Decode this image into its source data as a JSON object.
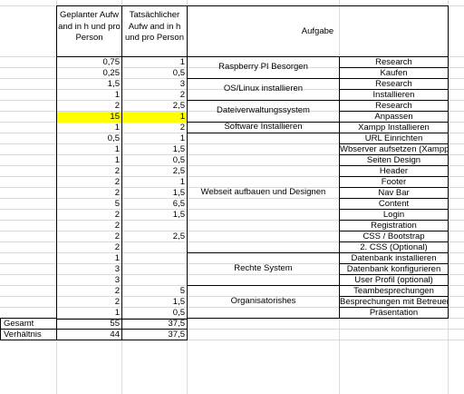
{
  "header": {
    "planned": "Geplanter Aufw and in h und pro Person",
    "actual": "Tatsächlicher Aufw and in h und pro Person",
    "task": "Aufgabe"
  },
  "colors": {
    "highlight": "#ffff00",
    "gridline": "#dadada"
  },
  "rows": [
    {
      "planned": "0,75",
      "actual": "1",
      "task": "Research"
    },
    {
      "planned": "0,25",
      "actual": "0,5",
      "task": "Kaufen"
    },
    {
      "planned": "1,5",
      "actual": "3",
      "task": "Research"
    },
    {
      "planned": "1",
      "actual": "2",
      "task": "Installieren"
    },
    {
      "planned": "2",
      "actual": "2,5",
      "task": "Research"
    },
    {
      "planned": "15",
      "actual": "1",
      "task": "Anpassen",
      "highlight": true
    },
    {
      "planned": "1",
      "actual": "2",
      "task": "Xampp Installieren"
    },
    {
      "planned": "0,5",
      "actual": "1",
      "task": "URL Einrichten"
    },
    {
      "planned": "1",
      "actual": "1,5",
      "task": "Wbserver aufsetzen (Xampp)"
    },
    {
      "planned": "1",
      "actual": "0,5",
      "task": "Seiten Design"
    },
    {
      "planned": "2",
      "actual": "2,5",
      "task": "Header"
    },
    {
      "planned": "2",
      "actual": "1",
      "task": "Footer"
    },
    {
      "planned": "2",
      "actual": "1,5",
      "task": "Nav Bar"
    },
    {
      "planned": "5",
      "actual": "6,5",
      "task": "Content"
    },
    {
      "planned": "2",
      "actual": "1,5",
      "task": "Login"
    },
    {
      "planned": "2",
      "actual": "",
      "task": "Registration"
    },
    {
      "planned": "2",
      "actual": "2,5",
      "task": "CSS / Bootstrap"
    },
    {
      "planned": "2",
      "actual": "",
      "task": "2. CSS (Optional)"
    },
    {
      "planned": "1",
      "actual": "",
      "task": "Datenbank installieren"
    },
    {
      "planned": "3",
      "actual": "",
      "task": "Datenbank konfigurieren"
    },
    {
      "planned": "3",
      "actual": "",
      "task": "User Profil (optional)"
    },
    {
      "planned": "2",
      "actual": "5",
      "task": "Teambesprechungen"
    },
    {
      "planned": "2",
      "actual": "1,5",
      "task": "Besprechungen mit Betreuer"
    },
    {
      "planned": "1",
      "actual": "0,5",
      "task": "Präsentation"
    }
  ],
  "groups": [
    {
      "label": "Raspberry PI Besorgen",
      "start": 0,
      "span": 2
    },
    {
      "label": "OS/Linux installieren",
      "start": 2,
      "span": 2
    },
    {
      "label": "Dateiverwaltungssystem",
      "start": 4,
      "span": 2
    },
    {
      "label": "Software Installieren",
      "start": 6,
      "span": 1
    },
    {
      "label": "Webseit aufbauen und Designen",
      "start": 7,
      "span": 11
    },
    {
      "label": "Rechte System",
      "start": 18,
      "span": 3
    },
    {
      "label": "Organisatorishes",
      "start": 21,
      "span": 3
    }
  ],
  "summary": [
    {
      "label": "Gesamt",
      "planned": "55",
      "actual": "37,5"
    },
    {
      "label": "Verhältnis",
      "planned": "44",
      "actual": "37,5"
    }
  ]
}
